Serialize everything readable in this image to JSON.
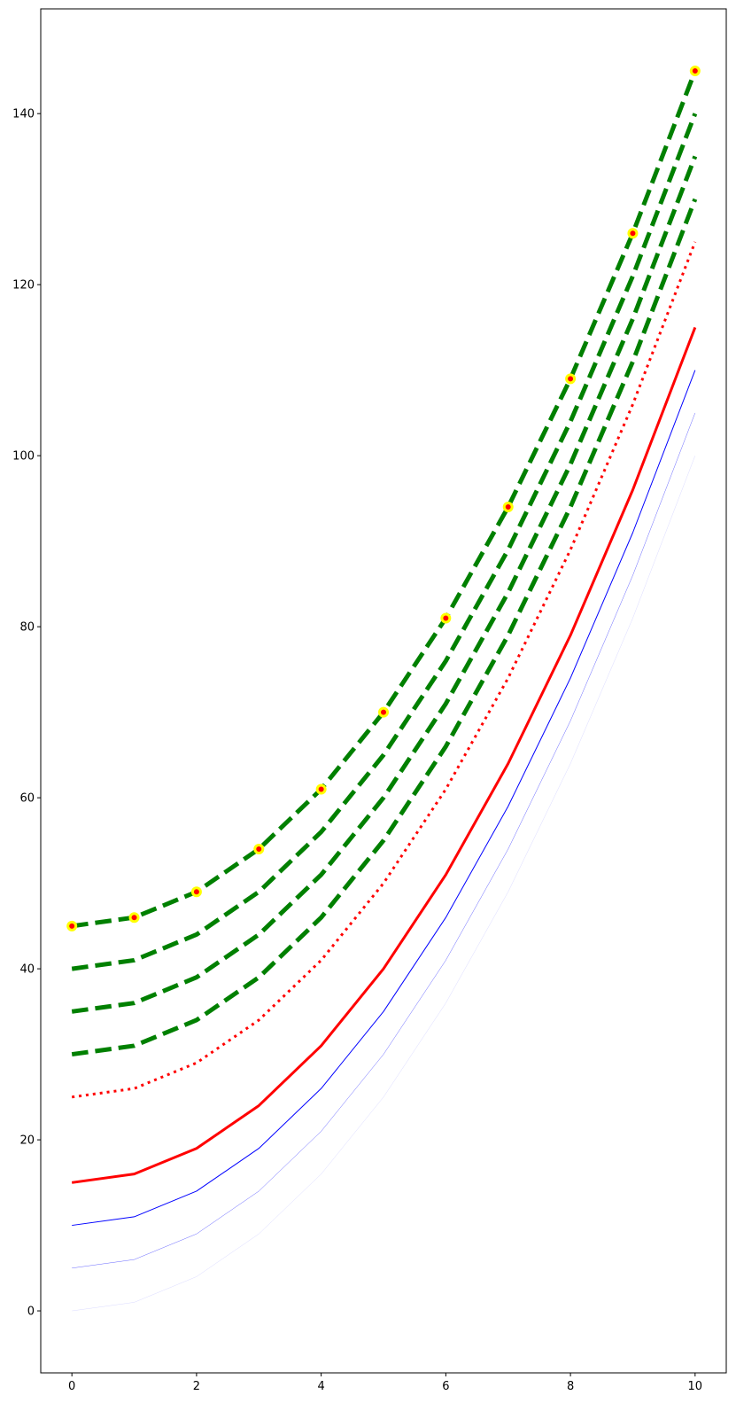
{
  "chart_data": {
    "type": "line",
    "title": "",
    "xlabel": "",
    "ylabel": "",
    "xlim": [
      -0.5,
      10.5
    ],
    "ylim": [
      -7.25,
      152.25
    ],
    "x_ticks": [
      0,
      2,
      4,
      6,
      8,
      10
    ],
    "y_ticks": [
      0,
      20,
      40,
      60,
      80,
      100,
      120,
      140
    ],
    "grid": false,
    "legend": "none",
    "x": [
      0,
      1,
      2,
      3,
      4,
      5,
      6,
      7,
      8,
      9,
      10
    ],
    "series": [
      {
        "offset": 0,
        "values": [
          0,
          1,
          4,
          9,
          16,
          25,
          36,
          49,
          64,
          81,
          100
        ],
        "color": "#0000ff",
        "linewidth": 0.25,
        "alpha": 0.3,
        "dash": "solid"
      },
      {
        "offset": 5,
        "values": [
          5,
          6,
          9,
          14,
          21,
          30,
          41,
          54,
          69,
          86,
          105
        ],
        "color": "#0000ff",
        "linewidth": 0.5,
        "alpha": 0.6,
        "dash": "solid"
      },
      {
        "offset": 10,
        "values": [
          10,
          11,
          14,
          19,
          26,
          35,
          46,
          59,
          74,
          91,
          110
        ],
        "color": "#0000ff",
        "linewidth": 1,
        "alpha": 1,
        "dash": "solid"
      },
      {
        "offset": 15,
        "values": [
          15,
          16,
          19,
          24,
          31,
          40,
          51,
          64,
          79,
          96,
          115
        ],
        "color": "#ff0000",
        "linewidth": 3,
        "alpha": 1,
        "dash": "solid"
      },
      {
        "offset": 25,
        "values": [
          25,
          26,
          29,
          34,
          41,
          50,
          61,
          74,
          89,
          106,
          125
        ],
        "color": "#ff0000",
        "linewidth": 3,
        "alpha": 1,
        "dash": "dotted"
      },
      {
        "offset": 30,
        "values": [
          30,
          31,
          34,
          39,
          46,
          55,
          66,
          79,
          94,
          111,
          130
        ],
        "color": "#008000",
        "linewidth": 5,
        "alpha": 1,
        "dash": "dashed"
      },
      {
        "offset": 35,
        "values": [
          35,
          36,
          39,
          44,
          51,
          60,
          71,
          84,
          99,
          116,
          135
        ],
        "color": "#008000",
        "linewidth": 5,
        "alpha": 1,
        "dash": "dashed"
      },
      {
        "offset": 40,
        "values": [
          40,
          41,
          44,
          49,
          56,
          65,
          76,
          89,
          104,
          121,
          140
        ],
        "color": "#008000",
        "linewidth": 5,
        "alpha": 1,
        "dash": "dashed"
      },
      {
        "offset": 45,
        "values": [
          45,
          46,
          49,
          54,
          61,
          70,
          81,
          94,
          109,
          126,
          145
        ],
        "color": "#008000",
        "linewidth": 5,
        "alpha": 1,
        "dash": "dashed",
        "marker": "circle",
        "marker_face": "#ff0000",
        "marker_edge": "#ffff00"
      }
    ]
  }
}
